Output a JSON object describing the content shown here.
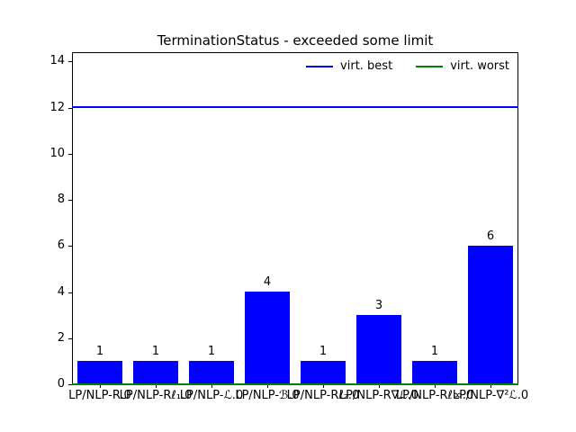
{
  "figure": {
    "background": "#ffffff",
    "axes_color": "#000000",
    "text_color": "#000000"
  },
  "title": "TerminationStatus - exceeded some limit",
  "legend": {
    "items": [
      {
        "label": "virt. best",
        "color": "#0000ff"
      },
      {
        "label": "virt. worst",
        "color": "#008000"
      }
    ],
    "position": "upper right inside plot, horizontal row, no frame"
  },
  "chart_data": {
    "type": "bar",
    "title": "TerminationStatus - exceeded some limit",
    "categories": [
      "LP/NLP-R.0",
      "LP/NLP-Rℓ₁.0",
      "LP/NLP-ℒ.0",
      "LP/NLP-ℬ.0",
      "LP/NLP-Rℓ₂.0",
      "LP/NLP-R∇ℒ.0",
      "LP/NLP-Rℓ∞.0",
      "LP/NLP-∇²ℒ.0"
    ],
    "values": [
      1,
      1,
      1,
      4,
      1,
      3,
      1,
      6
    ],
    "bar_value_labels": [
      "1",
      "1",
      "1",
      "4",
      "1",
      "3",
      "1",
      "6"
    ],
    "bar_color": "#0000ff",
    "xlabel": "",
    "ylabel": "",
    "ylim": [
      0,
      14.4
    ],
    "yticks": [
      0,
      2,
      4,
      6,
      8,
      10,
      12,
      14
    ],
    "grid": false,
    "hlines": [
      {
        "name": "virt. best",
        "y": 12,
        "color": "#0000ff"
      },
      {
        "name": "virt. worst",
        "y": 0,
        "color": "#008000"
      }
    ],
    "note": "x tick labels overlap each other heavily in the original render"
  }
}
